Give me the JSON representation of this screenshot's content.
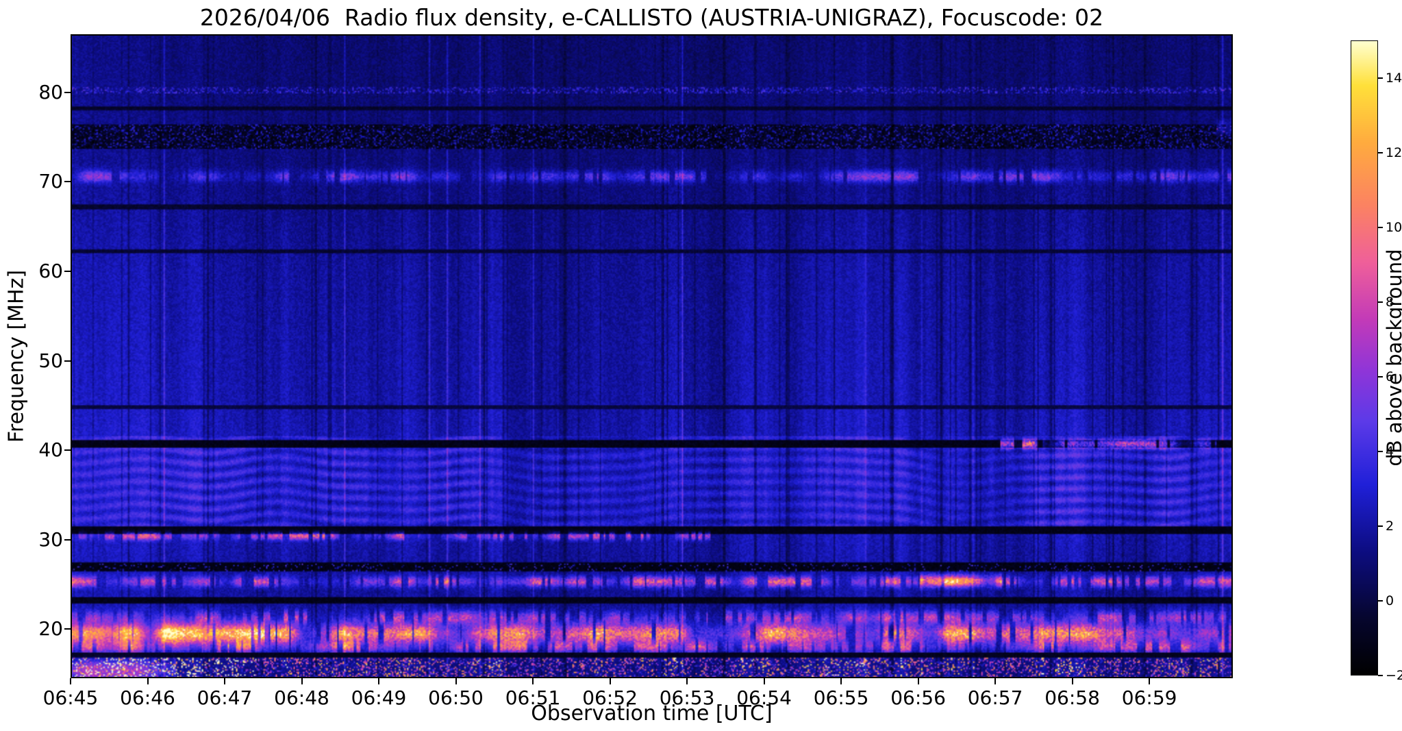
{
  "figure": {
    "background": "#ffffff"
  },
  "chart_data": {
    "type": "heatmap",
    "title": "2026/04/06  Radio flux density, e-CALLISTO (AUSTRIA-UNIGRAZ), Focuscode: 02",
    "xlabel": "Observation time [UTC]",
    "ylabel": "Frequency [MHz]",
    "x_range_seconds": [
      0,
      905
    ],
    "x_ticks": [
      {
        "s": 0,
        "label": "06:45"
      },
      {
        "s": 60,
        "label": "06:46"
      },
      {
        "s": 120,
        "label": "06:47"
      },
      {
        "s": 180,
        "label": "06:48"
      },
      {
        "s": 240,
        "label": "06:49"
      },
      {
        "s": 300,
        "label": "06:50"
      },
      {
        "s": 360,
        "label": "06:51"
      },
      {
        "s": 420,
        "label": "06:52"
      },
      {
        "s": 480,
        "label": "06:53"
      },
      {
        "s": 540,
        "label": "06:54"
      },
      {
        "s": 600,
        "label": "06:55"
      },
      {
        "s": 660,
        "label": "06:56"
      },
      {
        "s": 720,
        "label": "06:57"
      },
      {
        "s": 780,
        "label": "06:58"
      },
      {
        "s": 840,
        "label": "06:59"
      }
    ],
    "y_range_mhz": [
      14.5,
      86.5
    ],
    "y_ticks": [
      {
        "v": 80,
        "label": "80"
      },
      {
        "v": 70,
        "label": "70"
      },
      {
        "v": 60,
        "label": "60"
      },
      {
        "v": 50,
        "label": "50"
      },
      {
        "v": 40,
        "label": "40"
      },
      {
        "v": 30,
        "label": "30"
      },
      {
        "v": 20,
        "label": "20"
      }
    ],
    "colorbar": {
      "label": "dB above background",
      "range": [
        -2,
        15
      ],
      "ticks": [
        {
          "v": 14,
          "label": "14"
        },
        {
          "v": 12,
          "label": "12"
        },
        {
          "v": 10,
          "label": "10"
        },
        {
          "v": 8,
          "label": "8"
        },
        {
          "v": 6,
          "label": "6"
        },
        {
          "v": 4,
          "label": "4"
        },
        {
          "v": 2,
          "label": "2"
        },
        {
          "v": 0,
          "label": "0"
        },
        {
          "v": -2,
          "label": "−2"
        }
      ],
      "colormap_stops": [
        {
          "t": 0.0,
          "color": "#000000"
        },
        {
          "t": 0.09,
          "color": "#06062e"
        },
        {
          "t": 0.2,
          "color": "#0d0d85"
        },
        {
          "t": 0.3,
          "color": "#2020d8"
        },
        {
          "t": 0.4,
          "color": "#5c3ae8"
        },
        {
          "t": 0.48,
          "color": "#8f35d8"
        },
        {
          "t": 0.56,
          "color": "#c23ab8"
        },
        {
          "t": 0.65,
          "color": "#ef5f9a"
        },
        {
          "t": 0.74,
          "color": "#fb8262"
        },
        {
          "t": 0.84,
          "color": "#ffab3e"
        },
        {
          "t": 0.93,
          "color": "#ffe03a"
        },
        {
          "t": 1.0,
          "color": "#ffffd0"
        }
      ]
    },
    "features": [
      {
        "name": "hf-broadcast-dark-band",
        "type": "dark_band",
        "f_lo": 73.7,
        "f_hi": 76.4,
        "floor": -1.8,
        "speckle_amp": 4.6,
        "speckle_density": 0.32
      },
      {
        "name": "speckle-line-80mhz",
        "type": "speckle_line",
        "f": 80.2,
        "half_width": 0.35,
        "amp": 3.4,
        "density": 0.3
      },
      {
        "name": "dark-line-78mhz",
        "type": "dark_line",
        "f": 78.2,
        "half_width": 0.2,
        "depth": -1.0
      },
      {
        "name": "bright-line-70mhz",
        "type": "bright_line",
        "f": 70.6,
        "sigma": 0.45,
        "amp": 3.4,
        "variability": 0.85,
        "gap_density": 0.25
      },
      {
        "name": "dark-line-67mhz",
        "type": "dark_line",
        "f": 67.2,
        "half_width": 0.22,
        "depth": -0.9
      },
      {
        "name": "dark-line-62mhz",
        "type": "dark_line",
        "f": 62.3,
        "half_width": 0.22,
        "depth": -0.8
      },
      {
        "name": "dark-line-45mhz",
        "type": "dark_line",
        "f": 44.8,
        "half_width": 0.2,
        "depth": -0.5
      },
      {
        "name": "ionogram-ripples",
        "type": "ripples",
        "f_lo": 31.5,
        "f_hi": 41.5,
        "amp": 1.7,
        "f_freq": 5.0,
        "drift": 9.0
      },
      {
        "name": "dark-line-41mhz",
        "type": "dark_line",
        "f": 40.7,
        "half_width": 0.45,
        "depth": -1.6
      },
      {
        "name": "bright-41mhz-right",
        "type": "bright_line",
        "f": 40.7,
        "sigma": 0.35,
        "amp": 7,
        "t0": 0.8,
        "t1": 0.985,
        "variability": 1.0,
        "gap_density": 0.3
      },
      {
        "name": "dark-line-31mhz",
        "type": "dark_line",
        "f": 31.1,
        "half_width": 0.4,
        "depth": -1.6
      },
      {
        "name": "bright-line-30mhz",
        "type": "bright_line",
        "f": 30.4,
        "sigma": 0.3,
        "amp": 4.5,
        "t0": 0,
        "t1": 0.55,
        "variability": 1.1,
        "gap_density": 0.45
      },
      {
        "name": "dark-line-27mhz",
        "type": "dark_line",
        "f": 26.9,
        "half_width": 0.5,
        "depth": -1.7
      },
      {
        "name": "speckle-27mhz",
        "type": "speckle_line",
        "f": 26.9,
        "half_width": 0.4,
        "amp": 6,
        "density": 0.1
      },
      {
        "name": "bright-line-25mhz",
        "type": "bright_line",
        "f": 25.3,
        "sigma": 0.4,
        "amp": 5,
        "variability": 1.0,
        "gap_density": 0.35
      },
      {
        "name": "bright-25mhz-flare",
        "type": "bright_line",
        "f": 25.4,
        "sigma": 0.45,
        "amp": 11,
        "t0": 0.73,
        "t1": 0.8,
        "variability": 0.4,
        "gap_density": 0
      },
      {
        "name": "dark-line-23mhz",
        "type": "dark_line",
        "f": 23.2,
        "half_width": 0.35,
        "depth": -1.5
      },
      {
        "name": "bright-line-21mhz",
        "type": "bright_line",
        "f": 21.3,
        "sigma": 0.5,
        "amp": 3.5,
        "variability": 1.2,
        "gap_density": 0.4
      },
      {
        "name": "shortwave-19mhz",
        "type": "bright_line",
        "f": 19.5,
        "sigma": 0.75,
        "amp": 11,
        "variability": 0.55,
        "gap_density": 0.18
      },
      {
        "name": "shortwave-19mhz-left",
        "type": "bright_line",
        "f": 19.5,
        "sigma": 0.85,
        "amp": 6,
        "t0": 0,
        "t1": 0.17,
        "variability": 0.5,
        "gap_density": 0
      },
      {
        "name": "bright-line-18mhz",
        "type": "bright_line",
        "f": 18.0,
        "sigma": 0.5,
        "amp": 5,
        "variability": 0.9,
        "gap_density": 0.35
      },
      {
        "name": "dark-line-17mhz",
        "type": "dark_line",
        "f": 17.1,
        "half_width": 0.3,
        "depth": -1.4
      },
      {
        "name": "bottom-noise-band",
        "type": "noise_band",
        "f_lo": 14.5,
        "f_hi": 16.8,
        "amp": 12,
        "density": 0.3,
        "left_boost": 1.7
      },
      {
        "name": "bottom-left-bright",
        "type": "bright_line",
        "f": 15.3,
        "sigma": 0.8,
        "amp": 10,
        "t0": 0,
        "t1": 0.09,
        "variability": 0.6,
        "gap_density": 0
      },
      {
        "name": "corner-magenta-76mhz",
        "type": "bright_line",
        "f": 75.9,
        "sigma": 0.5,
        "amp": 9,
        "t0": 0.985,
        "t1": 1.0,
        "variability": 0.3,
        "gap_density": 0
      }
    ]
  }
}
